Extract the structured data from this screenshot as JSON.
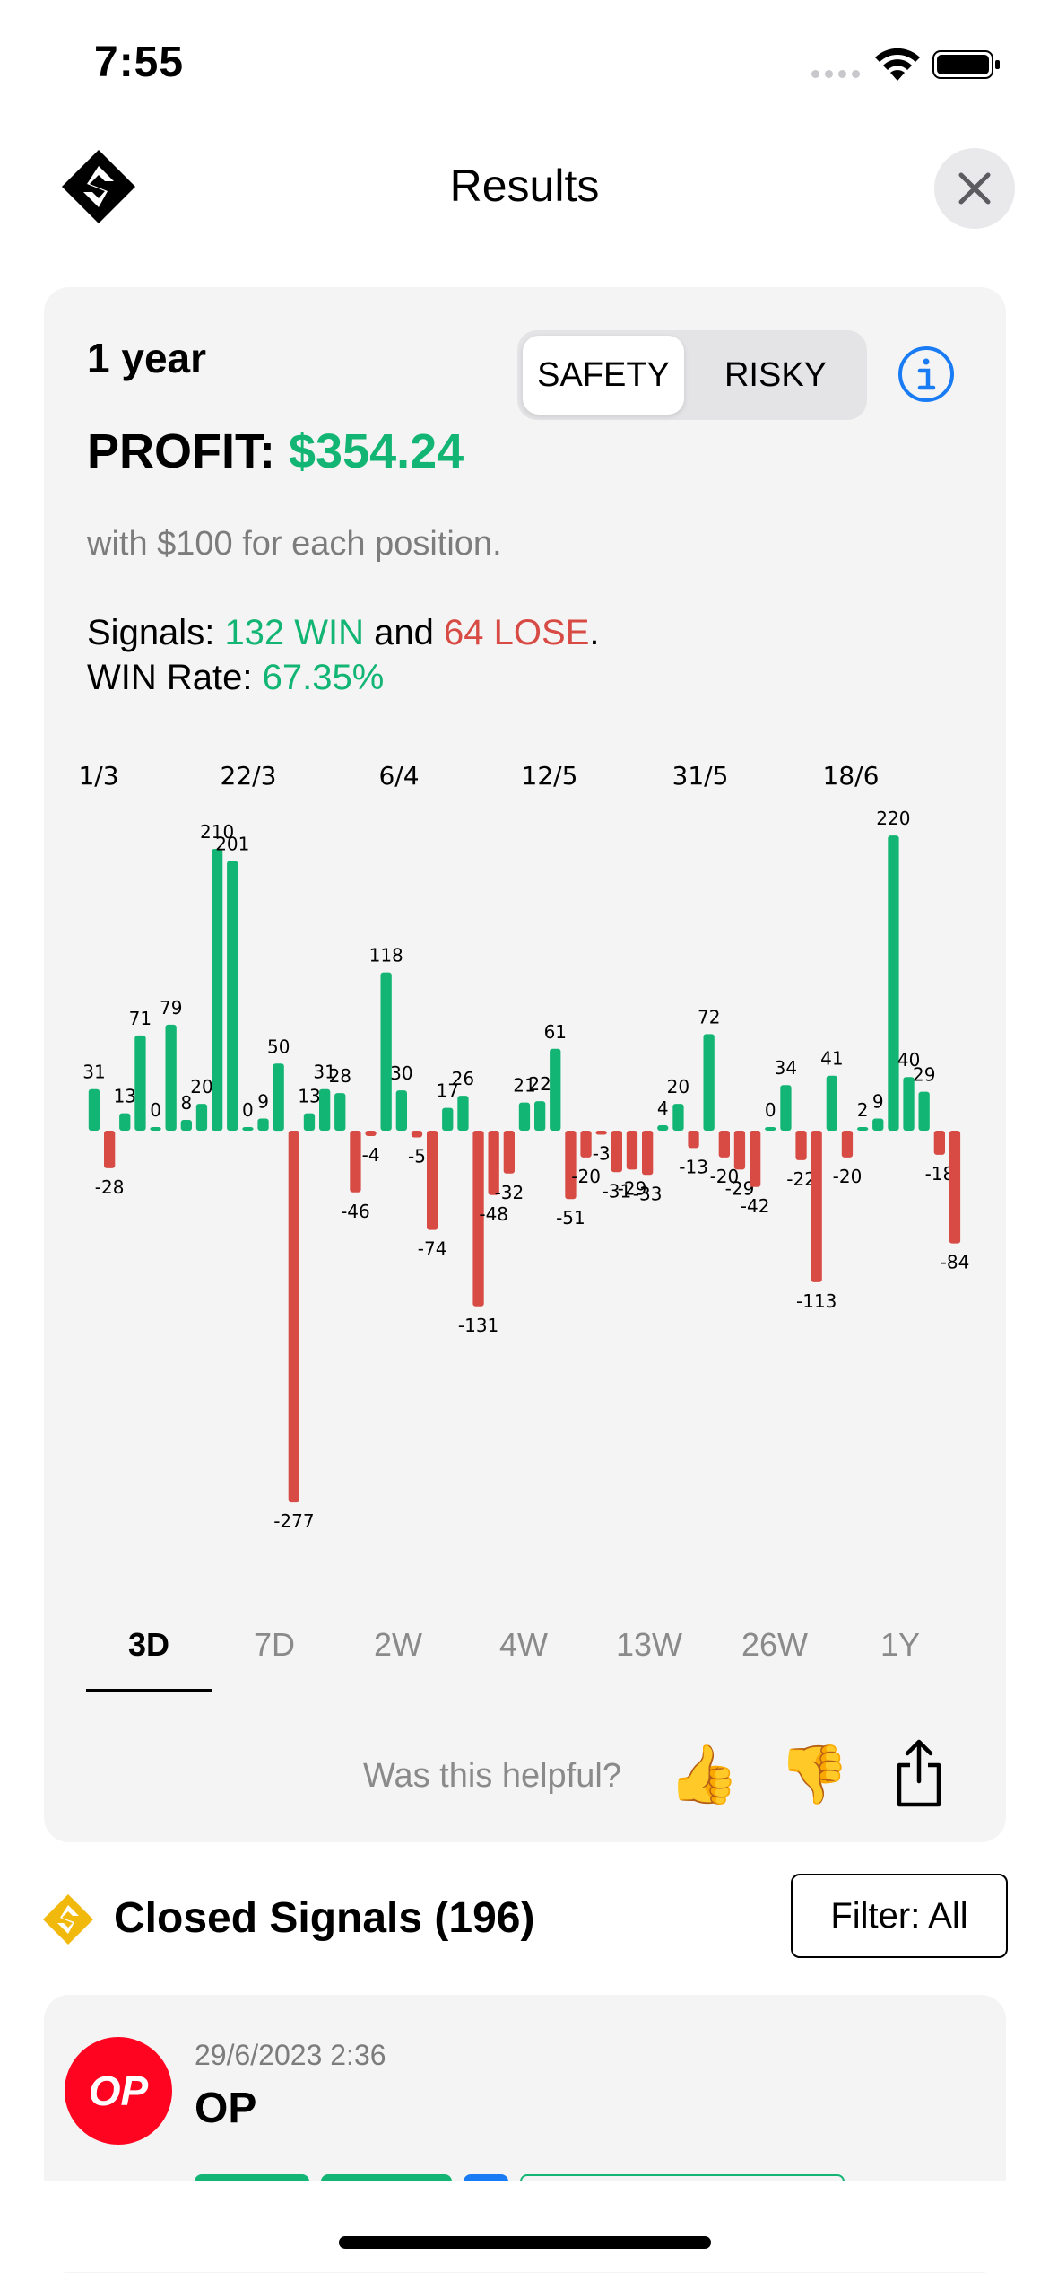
{
  "status": {
    "time": "7:55"
  },
  "header": {
    "title": "Results",
    "logo_icon": "app-logo-icon",
    "close_icon": "close-icon"
  },
  "summary": {
    "period": "1 year",
    "mode_options": [
      "SAFETY",
      "RISKY"
    ],
    "selected_mode": "SAFETY",
    "profit_label": "PROFIT:",
    "profit_value": "$354.24",
    "subtext": "with $100 for each position.",
    "signals_prefix": "Signals:",
    "wins": "132 WIN",
    "and": "and",
    "losses": "64 LOSE",
    "period_end": ".",
    "winrate_label": "WIN Rate:",
    "winrate_value": "67.35%"
  },
  "chart_data": {
    "type": "bar",
    "x_tick_labels": [
      "1/3",
      "22/3",
      "6/4",
      "12/5",
      "31/5",
      "18/6"
    ],
    "values": [
      31,
      -28,
      13,
      71,
      0,
      79,
      8,
      20,
      210,
      201,
      0,
      9,
      50,
      -277,
      13,
      31,
      28,
      -46,
      -4,
      118,
      30,
      -5,
      -74,
      17,
      26,
      -131,
      -48,
      -32,
      21,
      22,
      61,
      -51,
      -20,
      -3,
      -31,
      -29,
      -33,
      4,
      20,
      -13,
      72,
      -20,
      -29,
      -42,
      0,
      34,
      -22,
      -113,
      41,
      -20,
      2,
      9,
      220,
      40,
      29,
      -18,
      -84
    ],
    "positive_color": "#13b574",
    "negative_color": "#d84b45",
    "ylim": [
      -277,
      220
    ]
  },
  "tabs": [
    "3D",
    "7D",
    "2W",
    "4W",
    "13W",
    "26W",
    "1Y"
  ],
  "active_tab": "3D",
  "feedback": {
    "question": "Was this helpful?",
    "thumbs_up": "👍",
    "thumbs_down": "👎"
  },
  "closed": {
    "title": "Closed Signals (196)",
    "filter_label": "Filter: All"
  },
  "signal": {
    "date": "29/6/2023 2:36",
    "name": "OP",
    "logo_text": "OP",
    "logo_color": "#ff0420"
  }
}
